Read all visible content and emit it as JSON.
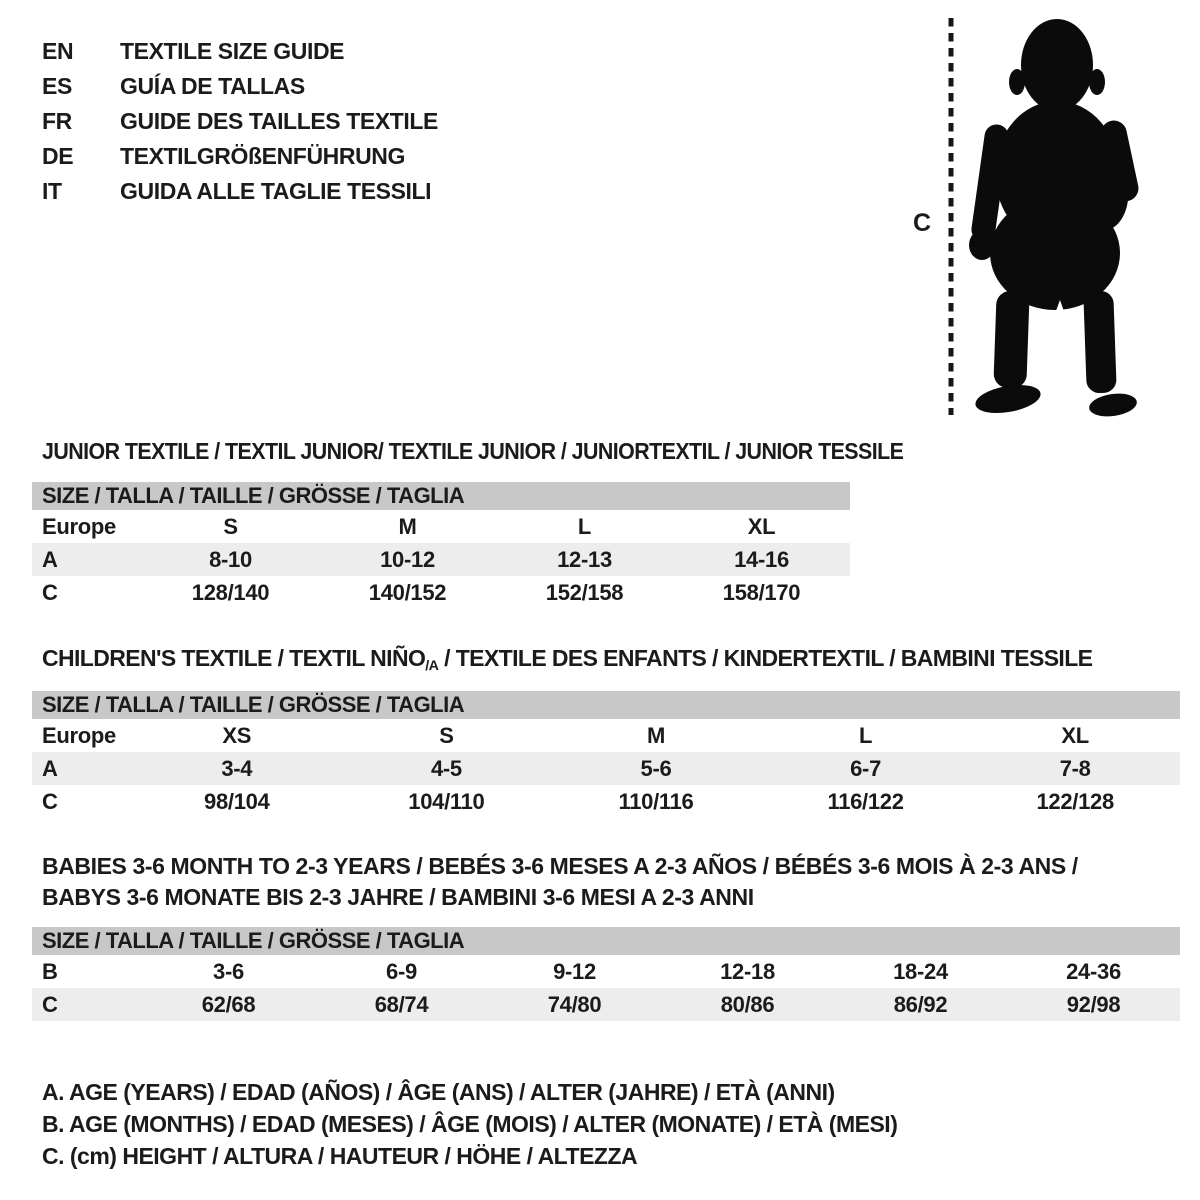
{
  "colors": {
    "background": "#ffffff",
    "text": "#1b1b1b",
    "table_header_bg": "#c8c8c8",
    "row_shaded_bg": "#ededed",
    "silhouette": "#0b0b0b"
  },
  "language_guide": {
    "items": [
      {
        "code": "EN",
        "title": "TEXTILE SIZE GUIDE"
      },
      {
        "code": "ES",
        "title": "GUÍA DE TALLAS"
      },
      {
        "code": "FR",
        "title": "GUIDE DES TAILLES TEXTILE"
      },
      {
        "code": "DE",
        "title": "TEXTILGRÖßENFÜHRUNG"
      },
      {
        "code": "IT",
        "title": "GUIDA ALLE TAGLIE TESSILI"
      }
    ]
  },
  "figure": {
    "icon": "toddler-silhouette",
    "measure_label": "C"
  },
  "sections": [
    {
      "id": "junior",
      "title_lines": [
        [
          {
            "t": "JUNIOR TEXTILE / TEXTIL JUNIOR/ TEXTILE JUNIOR / JUNIORTEXTIL / JUNIOR TESSILE"
          }
        ]
      ],
      "table": {
        "size_header": "SIZE / TALLA / TAILLE / GRÖSSE / TAGLIA",
        "rows": [
          {
            "label": "Europe",
            "shaded": false,
            "cells": [
              "S",
              "M",
              "L",
              "XL"
            ]
          },
          {
            "label": "A",
            "shaded": true,
            "cells": [
              "8-10",
              "10-12",
              "12-13",
              "14-16"
            ]
          },
          {
            "label": "C",
            "shaded": false,
            "cells": [
              "128/140",
              "140/152",
              "152/158",
              "158/170"
            ]
          }
        ]
      }
    },
    {
      "id": "children",
      "title_lines": [
        [
          {
            "t": "CHILDREN'S TEXTILE / TEXTIL NIÑO"
          },
          {
            "t": "/A",
            "sub": true
          },
          {
            "t": " / TEXTILE DES ENFANTS / KINDERTEXTIL / BAMBINI TESSILE"
          }
        ]
      ],
      "table": {
        "size_header": "SIZE / TALLA / TAILLE / GRÖSSE / TAGLIA",
        "rows": [
          {
            "label": "Europe",
            "shaded": false,
            "cells": [
              "XS",
              "S",
              "M",
              "L",
              "XL"
            ]
          },
          {
            "label": "A",
            "shaded": true,
            "cells": [
              "3-4",
              "4-5",
              "5-6",
              "6-7",
              "7-8"
            ]
          },
          {
            "label": "C",
            "shaded": false,
            "cells": [
              "98/104",
              "104/110",
              "110/116",
              "116/122",
              "122/128"
            ]
          }
        ]
      }
    },
    {
      "id": "babies",
      "title_lines": [
        [
          {
            "t": "BABIES 3-6 MONTH TO 2-3 YEARS / BEBÉS 3-6 MESES A 2-3 AÑOS / BÉBÉS 3-6 MOIS À 2-3 ANS /"
          }
        ],
        [
          {
            "t": "BABYS 3-6 MONATE BIS 2-3 JAHRE / BAMBINI 3-6 MESI A 2-3 ANNI"
          }
        ]
      ],
      "table": {
        "size_header": "SIZE / TALLA / TAILLE / GRÖSSE / TAGLIA",
        "rows": [
          {
            "label": "B",
            "shaded": false,
            "cells": [
              "3-6",
              "6-9",
              "9-12",
              "12-18",
              "18-24",
              "24-36"
            ]
          },
          {
            "label": "C",
            "shaded": true,
            "cells": [
              "62/68",
              "68/74",
              "74/80",
              "80/86",
              "86/92",
              "92/98"
            ]
          }
        ]
      }
    }
  ],
  "legend": {
    "lines": [
      "A. AGE (YEARS) / EDAD (AÑOS) / ÂGE (ANS) / ALTER (JAHRE) / ETÀ (ANNI)",
      "B. AGE (MONTHS) / EDAD (MESES) / ÂGE (MOIS) / ALTER (MONATE) / ETÀ (MESI)",
      "C. (cm) HEIGHT / ALTURA / HAUTEUR / HÖHE / ALTEZZA"
    ]
  }
}
